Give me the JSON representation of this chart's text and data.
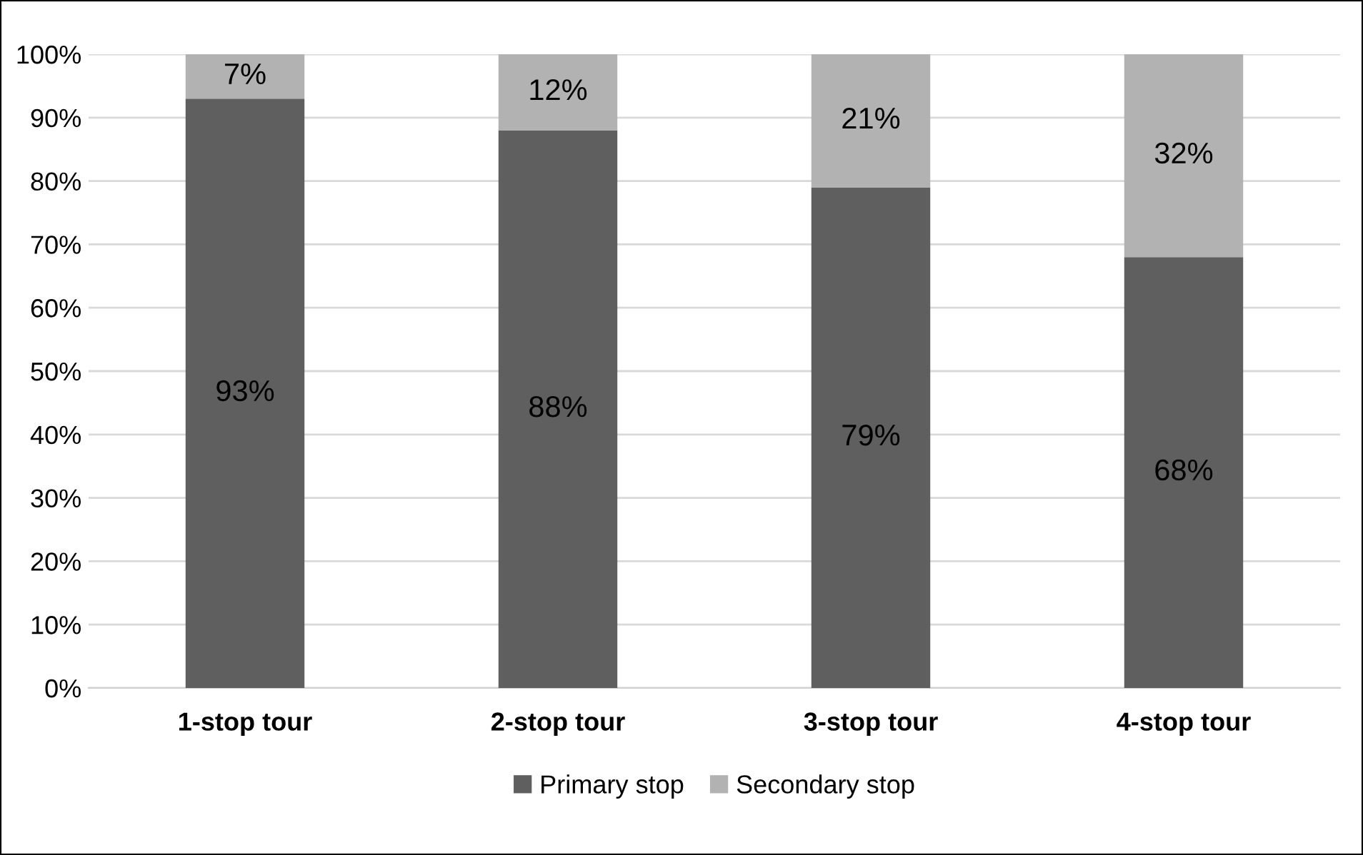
{
  "chart_data": {
    "type": "bar",
    "stacked": true,
    "categories": [
      "1-stop tour",
      "2-stop tour",
      "3-stop tour",
      "4-stop tour"
    ],
    "series": [
      {
        "name": "Primary stop",
        "color": "#5f5f5f",
        "values": [
          93,
          88,
          79,
          68
        ],
        "value_labels": [
          "93%",
          "88%",
          "79%",
          "68%"
        ]
      },
      {
        "name": "Secondary stop",
        "color": "#b2b2b2",
        "values": [
          7,
          12,
          21,
          32
        ],
        "value_labels": [
          "7%",
          "12%",
          "21%",
          "32%"
        ]
      }
    ],
    "ylim": [
      0,
      100
    ],
    "yticks": [
      {
        "value": 0,
        "label": "0%"
      },
      {
        "value": 10,
        "label": "10%"
      },
      {
        "value": 20,
        "label": "20%"
      },
      {
        "value": 30,
        "label": "30%"
      },
      {
        "value": 40,
        "label": "40%"
      },
      {
        "value": 50,
        "label": "50%"
      },
      {
        "value": 60,
        "label": "60%"
      },
      {
        "value": 70,
        "label": "70%"
      },
      {
        "value": 80,
        "label": "80%"
      },
      {
        "value": 90,
        "label": "90%"
      },
      {
        "value": 100,
        "label": "100%"
      }
    ],
    "grid": "y",
    "legend": "bottom"
  }
}
